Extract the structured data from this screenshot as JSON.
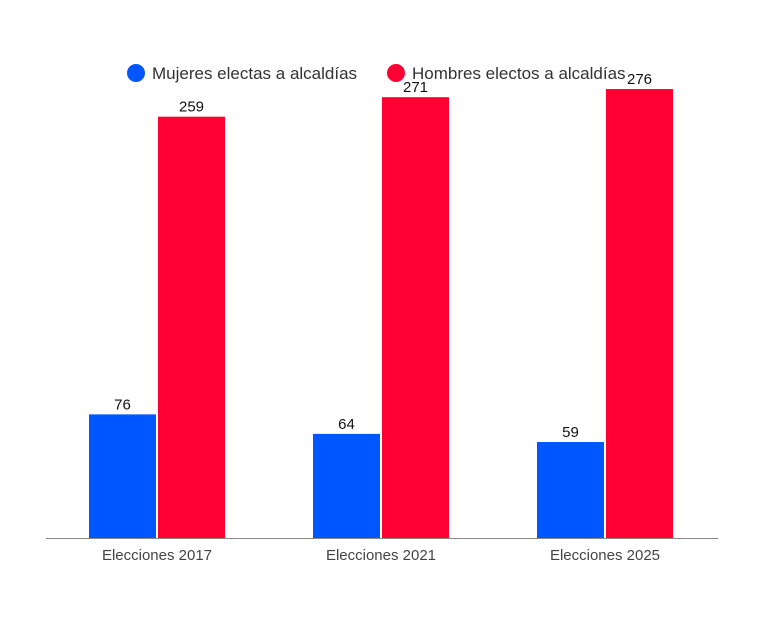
{
  "chart_data": {
    "type": "bar",
    "categories": [
      "Elecciones 2017",
      "Elecciones 2021",
      "Elecciones 2025"
    ],
    "series": [
      {
        "name": "Mujeres electas a alcaldías",
        "values": [
          76,
          64,
          59
        ],
        "color": "#0057ff"
      },
      {
        "name": "Hombres electos a alcaldías",
        "values": [
          259,
          271,
          276
        ],
        "color": "#ff0033"
      }
    ],
    "ylim": [
      0,
      300
    ],
    "grid": false,
    "legend_position": "top-center",
    "axis_color": "#888888"
  }
}
